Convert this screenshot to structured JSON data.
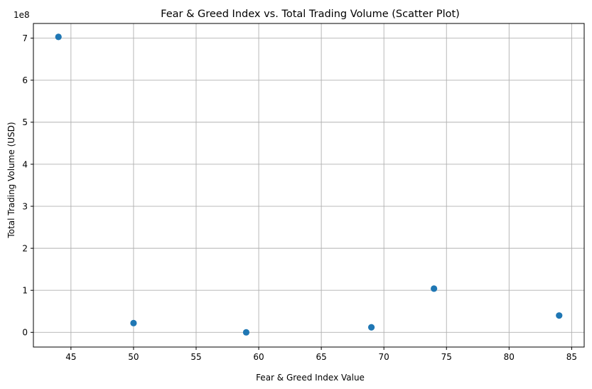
{
  "chart_data": {
    "type": "scatter",
    "title": "Fear & Greed Index vs. Total Trading Volume (Scatter Plot)",
    "xlabel": "Fear & Greed Index Value",
    "ylabel": "Total Trading Volume (USD)",
    "y_offset_label": "1e8",
    "xlim": [
      42.0,
      86.0
    ],
    "ylim": [
      -0.35,
      7.35
    ],
    "x_ticks": [
      45,
      50,
      55,
      60,
      65,
      70,
      75,
      80,
      85
    ],
    "y_ticks": [
      0,
      1,
      2,
      3,
      4,
      5,
      6,
      7
    ],
    "grid": true,
    "legend": "none",
    "marker_color": "#1f77b4",
    "series": [
      {
        "points": [
          {
            "x": 44,
            "y": 7.03
          },
          {
            "x": 50,
            "y": 0.22
          },
          {
            "x": 59,
            "y": 0.0
          },
          {
            "x": 69,
            "y": 0.12
          },
          {
            "x": 74,
            "y": 1.04
          },
          {
            "x": 84,
            "y": 0.4
          }
        ]
      }
    ]
  }
}
